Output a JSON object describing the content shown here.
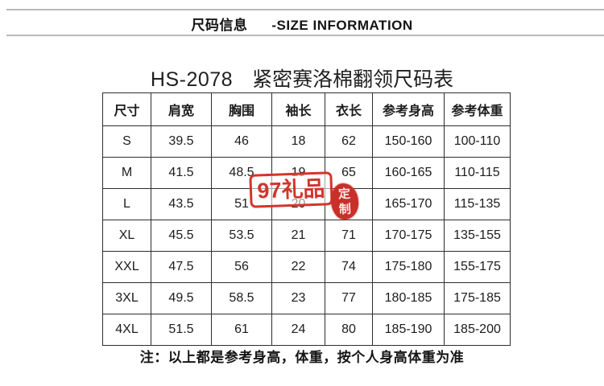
{
  "header": {
    "title_cn": "尺码信息",
    "title_en": "-SIZE INFORMATION"
  },
  "title": {
    "model": "HS-2078",
    "name": "紧密赛洛棉翻领尺码表"
  },
  "size_table": {
    "columns": [
      "尺寸",
      "肩宽",
      "胸围",
      "袖长",
      "衣长",
      "参考身高",
      "参考体重"
    ],
    "rows": [
      [
        "S",
        "39.5",
        "46",
        "18",
        "62",
        "150-160",
        "100-110"
      ],
      [
        "M",
        "41.5",
        "48.5",
        "19",
        "65",
        "160-165",
        "110-115"
      ],
      [
        "L",
        "43.5",
        "51",
        "20",
        "",
        "165-170",
        "115-135"
      ],
      [
        "XL",
        "45.5",
        "53.5",
        "21",
        "71",
        "170-175",
        "135-155"
      ],
      [
        "XXL",
        "47.5",
        "56",
        "22",
        "74",
        "175-180",
        "155-175"
      ],
      [
        "3XL",
        "49.5",
        "58.5",
        "23",
        "77",
        "180-185",
        "175-185"
      ],
      [
        "4XL",
        "51.5",
        "61",
        "24",
        "80",
        "185-190",
        "185-200"
      ]
    ]
  },
  "watermark": {
    "label": "97礼品",
    "seal_line1": "定",
    "seal_line2": "制",
    "accent_color": "#d2352b"
  },
  "note": "注：以上都是参考身高，体重，按个人身高体重为准"
}
